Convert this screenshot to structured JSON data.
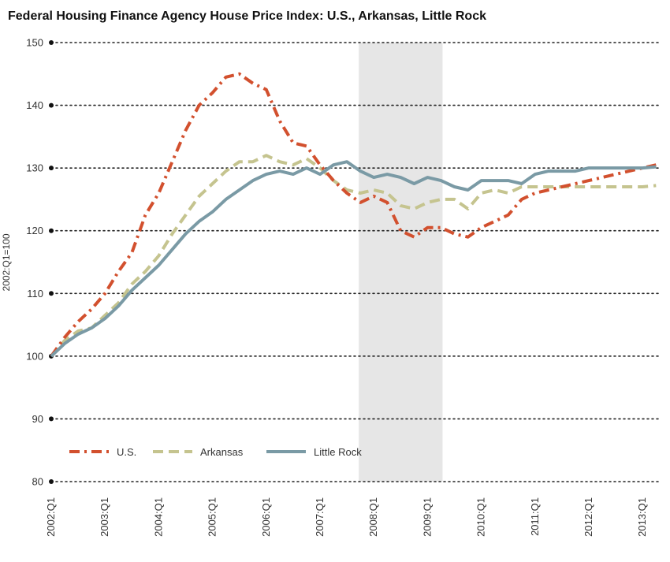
{
  "chart_data": {
    "type": "line",
    "title": "Federal Housing Finance Agency House Price Index: U.S., Arkansas, Little Rock",
    "ylabel": "2002:Q1=100",
    "xlabel": "",
    "ylim": [
      80,
      150
    ],
    "yticks": [
      80,
      90,
      100,
      110,
      120,
      130,
      140,
      150
    ],
    "x_tick_labels": [
      "2002:Q1",
      "2003:Q1",
      "2004:Q1",
      "2005:Q1",
      "2006:Q1",
      "2007:Q1",
      "2008:Q1",
      "2009:Q1",
      "2010:Q1",
      "2011:Q1",
      "2012:Q1",
      "2013:Q1"
    ],
    "x": [
      "2002:Q1",
      "2002:Q2",
      "2002:Q3",
      "2002:Q4",
      "2003:Q1",
      "2003:Q2",
      "2003:Q3",
      "2003:Q4",
      "2004:Q1",
      "2004:Q2",
      "2004:Q3",
      "2004:Q4",
      "2005:Q1",
      "2005:Q2",
      "2005:Q3",
      "2005:Q4",
      "2006:Q1",
      "2006:Q2",
      "2006:Q3",
      "2006:Q4",
      "2007:Q1",
      "2007:Q2",
      "2007:Q3",
      "2007:Q4",
      "2008:Q1",
      "2008:Q2",
      "2008:Q3",
      "2008:Q4",
      "2009:Q1",
      "2009:Q2",
      "2009:Q3",
      "2009:Q4",
      "2010:Q1",
      "2010:Q2",
      "2010:Q3",
      "2010:Q4",
      "2011:Q1",
      "2011:Q2",
      "2011:Q3",
      "2011:Q4",
      "2012:Q1",
      "2012:Q2",
      "2012:Q3",
      "2012:Q4",
      "2013:Q1",
      "2013:Q2"
    ],
    "recession": {
      "start": "2007:Q4",
      "end": "2009:Q2",
      "color": "#e6e6e6"
    },
    "grid": "horizontal dotted",
    "legend_position": "bottom-left",
    "series": [
      {
        "name": "U.S.",
        "style": "dash-dot",
        "color": "#d2502e",
        "values": [
          100.0,
          103.0,
          105.5,
          107.5,
          110.0,
          113.5,
          116.5,
          122.5,
          126.0,
          131.0,
          136.0,
          140.0,
          142.0,
          144.5,
          145.0,
          143.5,
          142.5,
          137.5,
          134.0,
          133.5,
          130.5,
          128.0,
          126.0,
          124.5,
          125.5,
          124.5,
          120.0,
          119.0,
          120.5,
          120.5,
          119.5,
          119.0,
          120.5,
          121.5,
          122.5,
          125.0,
          126.0,
          126.5,
          127.0,
          127.5,
          128.0,
          128.5,
          129.0,
          129.5,
          130.0,
          130.5
        ]
      },
      {
        "name": "Arkansas",
        "style": "dashed",
        "color": "#c5c48f",
        "values": [
          100.0,
          102.5,
          104.0,
          104.5,
          106.5,
          108.5,
          111.5,
          113.5,
          116.0,
          119.5,
          122.5,
          125.5,
          127.5,
          129.5,
          131.0,
          131.0,
          132.0,
          131.0,
          130.5,
          131.5,
          130.0,
          128.0,
          126.5,
          126.0,
          126.5,
          126.0,
          124.0,
          123.5,
          124.5,
          125.0,
          125.0,
          123.5,
          126.0,
          126.5,
          126.0,
          127.0,
          127.0,
          127.0,
          127.0,
          127.0,
          127.0,
          127.0,
          127.0,
          127.0,
          127.0,
          127.2
        ]
      },
      {
        "name": "Little Rock",
        "style": "solid",
        "color": "#7a9aa5",
        "values": [
          100.0,
          102.0,
          103.5,
          104.5,
          106.0,
          108.0,
          110.5,
          112.5,
          114.5,
          117.0,
          119.5,
          121.5,
          123.0,
          125.0,
          126.5,
          128.0,
          129.0,
          129.5,
          129.0,
          130.0,
          129.0,
          130.5,
          131.0,
          129.5,
          128.5,
          129.0,
          128.5,
          127.5,
          128.5,
          128.0,
          127.0,
          126.5,
          128.0,
          128.0,
          128.0,
          127.5,
          129.0,
          129.5,
          129.5,
          129.5,
          130.0,
          130.0,
          130.0,
          130.0,
          130.0,
          130.2
        ]
      }
    ]
  }
}
